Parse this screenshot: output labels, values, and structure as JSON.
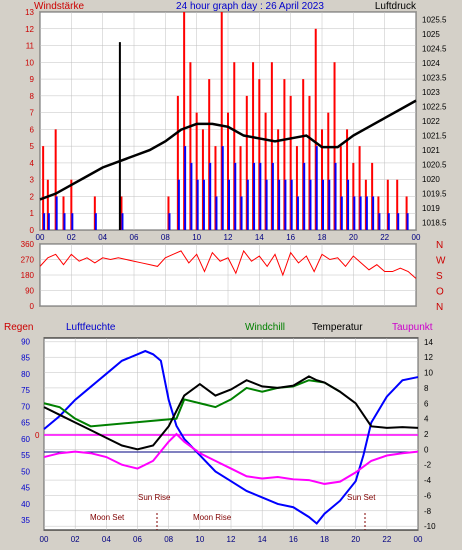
{
  "header": {
    "left_label": "Windstärke",
    "title": "24 hour graph day : 26 April 2023",
    "right_label": "Luftdruck"
  },
  "wind_direction_labels": [
    "N",
    "W",
    "S",
    "O",
    "N"
  ],
  "bottom_header": {
    "regen": "Regen",
    "luftfeuchte": "Luftfeuchte",
    "windchill": "Windchill",
    "temperatur": "Temperatur",
    "taupunkt": "Taupunkt"
  },
  "annotations": {
    "sun_rise": "Sun Rise",
    "sun_set": "Sun Set",
    "moon_set": "Moon Set",
    "moon_rise": "Moon Rise"
  },
  "colors": {
    "background": "#d4d0c8",
    "plot_bg": "#ffffff",
    "wind_gust": "#ff0000",
    "wind_avg": "#0000ff",
    "pressure": "#000000",
    "humidity": "#0000ff",
    "temperature": "#000000",
    "windchill": "#008000",
    "dewpoint": "#ff00ff",
    "zero_line": "#ff00ff",
    "left_axis_text": "#cc0000",
    "right_axis_text": "#000000"
  },
  "chart_data": [
    {
      "type": "bar",
      "name": "wind_pressure",
      "x_ticks": [
        "00",
        "02",
        "04",
        "06",
        "08",
        "10",
        "12",
        "14",
        "16",
        "18",
        "20",
        "22",
        "00"
      ],
      "y_left_ticks": [
        "0",
        "1",
        "2",
        "3",
        "4",
        "5",
        "6",
        "7",
        "8",
        "9",
        "10",
        "11",
        "12",
        "13"
      ],
      "y_left_range": [
        0,
        13
      ],
      "y_right_ticks": [
        "1018.5",
        "1019",
        "1019.5",
        "1020",
        "1020.5",
        "1021",
        "1021.5",
        "1022",
        "1022.5",
        "1023",
        "1023.5",
        "1024",
        "1024.5",
        "1025",
        "1025.5"
      ],
      "y_right_range": [
        1018.25,
        1025.75
      ],
      "series": [
        {
          "name": "Windstärke",
          "gust_x": [
            0.2,
            0.5,
            1.0,
            1.5,
            2.0,
            3.5,
            5.2,
            8.2,
            8.8,
            9.2,
            9.6,
            10.0,
            10.4,
            10.8,
            11.2,
            11.6,
            12.0,
            12.4,
            12.8,
            13.2,
            13.6,
            14.0,
            14.4,
            14.8,
            15.2,
            15.6,
            16.0,
            16.4,
            16.8,
            17.2,
            17.6,
            18.0,
            18.4,
            18.8,
            19.2,
            19.6,
            20.0,
            20.4,
            20.8,
            21.2,
            21.6,
            22.2,
            22.8,
            23.4
          ],
          "gust_y": [
            5,
            3,
            6,
            2,
            3,
            2,
            2,
            2,
            8,
            13,
            10,
            7,
            6,
            9,
            5,
            13,
            7,
            10,
            5,
            8,
            10,
            9,
            7,
            10,
            6,
            9,
            8,
            5,
            9,
            8,
            12,
            6,
            7,
            10,
            5,
            6,
            4,
            5,
            3,
            4,
            2,
            3,
            3,
            2
          ],
          "avg_y": [
            1,
            1,
            2,
            1,
            1,
            1,
            1,
            1,
            3,
            5,
            4,
            3,
            3,
            4,
            2,
            5,
            3,
            4,
            2,
            3,
            4,
            4,
            3,
            4,
            3,
            3,
            3,
            2,
            4,
            3,
            5,
            3,
            3,
            4,
            2,
            3,
            2,
            2,
            2,
            2,
            1,
            1,
            1,
            1
          ]
        },
        {
          "name": "Luftdruck",
          "x": [
            0,
            1,
            2,
            3,
            4,
            5,
            6,
            7,
            8,
            9,
            10,
            11,
            12,
            13,
            14,
            15,
            16,
            17,
            18,
            19,
            20,
            21,
            22,
            23,
            24
          ],
          "y": [
            1019.3,
            1019.5,
            1019.8,
            1020.1,
            1020.4,
            1020.6,
            1020.8,
            1021.0,
            1021.3,
            1021.7,
            1021.9,
            1021.9,
            1021.8,
            1021.5,
            1021.4,
            1021.3,
            1021.4,
            1021.5,
            1021.1,
            1021.1,
            1021.5,
            1021.8,
            1022.1,
            1022.4,
            1022.7
          ]
        }
      ]
    },
    {
      "type": "line",
      "name": "wind_direction",
      "y_ticks": [
        "0",
        "90",
        "180",
        "270",
        "360"
      ],
      "y_range": [
        0,
        360
      ],
      "x_ticks": [
        "00",
        "02",
        "04",
        "06",
        "08",
        "10",
        "12",
        "14",
        "16",
        "18",
        "20",
        "22",
        "00"
      ],
      "series": [
        {
          "name": "direction",
          "x": [
            0,
            0.5,
            1,
            1.5,
            2,
            2.5,
            3,
            3.5,
            4,
            4.5,
            5,
            5.5,
            6,
            6.5,
            7,
            7.5,
            8,
            8.5,
            9,
            9.5,
            10,
            10.5,
            11,
            11.5,
            12,
            12.5,
            13,
            13.5,
            14,
            14.5,
            15,
            15.5,
            16,
            16.5,
            17,
            17.5,
            18,
            18.5,
            19,
            19.5,
            20,
            20.5,
            21,
            21.5,
            22,
            22.5,
            23,
            23.5,
            24
          ],
          "y": [
            230,
            280,
            300,
            240,
            300,
            260,
            280,
            250,
            280,
            270,
            280,
            270,
            260,
            250,
            240,
            230,
            280,
            300,
            320,
            250,
            300,
            200,
            310,
            260,
            280,
            190,
            320,
            260,
            290,
            230,
            300,
            180,
            310,
            250,
            290,
            200,
            300,
            270,
            280,
            230,
            290,
            250,
            210,
            240,
            200,
            200,
            220,
            200,
            160
          ]
        }
      ]
    },
    {
      "type": "line",
      "name": "temperature_humidity",
      "x_ticks": [
        "00",
        "02",
        "04",
        "06",
        "08",
        "10",
        "12",
        "14",
        "16",
        "18",
        "20",
        "22",
        "00"
      ],
      "y_left_ticks": [
        "35",
        "40",
        "45",
        "50",
        "55",
        "60",
        "65",
        "70",
        "75",
        "80",
        "85",
        "90"
      ],
      "y_left_range": [
        32,
        91
      ],
      "y_right_ticks": [
        "-10",
        "-8",
        "-6",
        "-4",
        "-2",
        "0",
        "2",
        "4",
        "6",
        "8",
        "10",
        "12",
        "14"
      ],
      "y_right_range": [
        -10.5,
        14.5
      ],
      "series": [
        {
          "name": "Luftfeuchte",
          "x": [
            0,
            1,
            2,
            3,
            4,
            5,
            6,
            6.5,
            7,
            7.5,
            8,
            8.5,
            9,
            10,
            11,
            12,
            13,
            14,
            15,
            16,
            17,
            17.5,
            18,
            19,
            20,
            20.5,
            21,
            22,
            23,
            24
          ],
          "y": [
            63,
            67,
            72,
            76,
            80,
            84,
            86,
            87,
            86,
            84,
            72,
            64,
            60,
            55,
            50,
            47,
            44,
            42,
            40,
            39,
            36,
            34,
            37,
            41,
            47,
            55,
            65,
            73,
            78,
            79
          ]
        },
        {
          "name": "Temperatur",
          "x": [
            0,
            1,
            2,
            3,
            4,
            5,
            6,
            7,
            8,
            9,
            10,
            11,
            12,
            13,
            14,
            15,
            16,
            17,
            17.5,
            18,
            19,
            20,
            21,
            22,
            23,
            24
          ],
          "y": [
            5.5,
            4.5,
            3.5,
            2.5,
            1.5,
            0.5,
            0,
            0.5,
            3,
            7,
            8.5,
            7,
            7.8,
            9,
            8.2,
            8,
            8.3,
            9.5,
            9,
            8.7,
            7.5,
            6,
            3,
            2.8,
            2.9,
            2.8
          ]
        },
        {
          "name": "Windchill",
          "x": [
            0,
            1,
            2,
            3,
            8.5,
            9,
            10,
            11,
            12,
            13,
            14,
            15,
            16,
            17,
            18,
            19
          ],
          "y": [
            6,
            5.5,
            4,
            3,
            4,
            6.5,
            6,
            5.5,
            6.5,
            8,
            7.5,
            8,
            8.2,
            9,
            8.7,
            7.5
          ]
        },
        {
          "name": "Taupunkt",
          "x": [
            0,
            1,
            2,
            3,
            4,
            5,
            6,
            7,
            8,
            8.5,
            9,
            10,
            11,
            12,
            13,
            14,
            15,
            16,
            17,
            18,
            19,
            20,
            21,
            22,
            23,
            24
          ],
          "y": [
            -1,
            -0.5,
            -0.3,
            -0.5,
            -1,
            -2,
            -2.5,
            -1.5,
            1,
            2,
            1,
            -0.5,
            -1.5,
            -2.5,
            -3.5,
            -3.8,
            -3.6,
            -3.9,
            -4,
            -4.5,
            -4.2,
            -3,
            -1.5,
            -0.8,
            -0.5,
            -0.3
          ]
        }
      ]
    }
  ]
}
